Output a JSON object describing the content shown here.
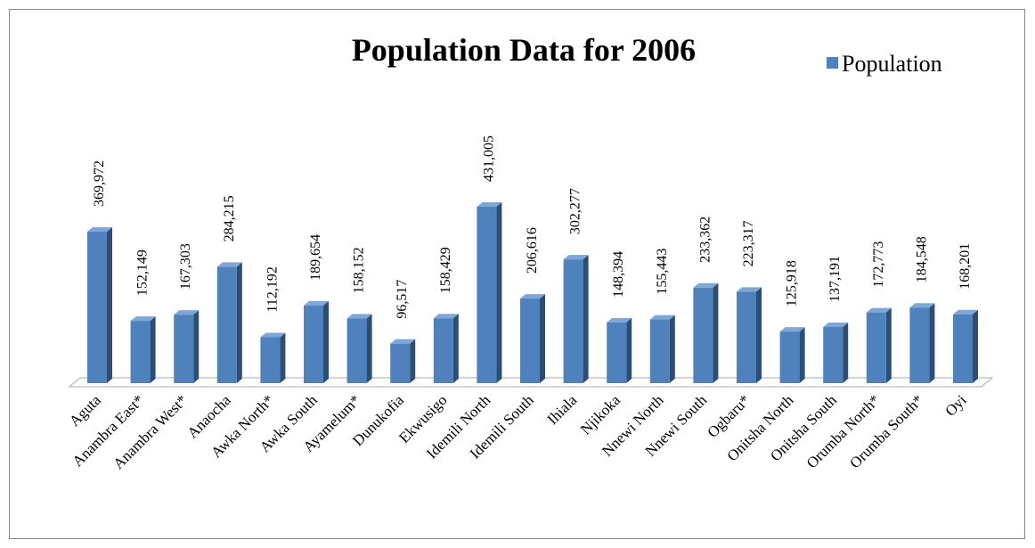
{
  "chart_data": {
    "type": "bar",
    "title": "Population Data for 2006",
    "categories": [
      "Aguta",
      "Anambra East*",
      "Anambra West*",
      "Anaocha",
      "Awka North*",
      "Awka South",
      "Ayamelum*",
      "Dunukofia",
      "Ekwusigo",
      "Idemili North",
      "Idemili South",
      "Ihiala",
      "Njikoka",
      "Nnewi North",
      "Nnewi South",
      "Ogbaru*",
      "Onitsha North",
      "Onitsha South",
      "Orumba North*",
      "Orumba South*",
      "Oyi"
    ],
    "series": [
      {
        "name": "Population",
        "color": "#4f81bd",
        "values": [
          369972,
          152149,
          167303,
          284215,
          112192,
          189654,
          158152,
          96517,
          158429,
          431005,
          206616,
          302277,
          148394,
          155443,
          233362,
          223317,
          125918,
          137191,
          172773,
          184548,
          168201
        ],
        "value_labels": [
          "369,972",
          "152,149",
          "167,303",
          "284,215",
          "112,192",
          "189,654",
          "158,152",
          "96,517",
          "158,429",
          "431,005",
          "206,616",
          "302,277",
          "148,394",
          "155,443",
          "233,362",
          "223,317",
          "125,918",
          "137,191",
          "172,773",
          "184,548",
          "168,201"
        ]
      }
    ],
    "legend": "top-right"
  }
}
